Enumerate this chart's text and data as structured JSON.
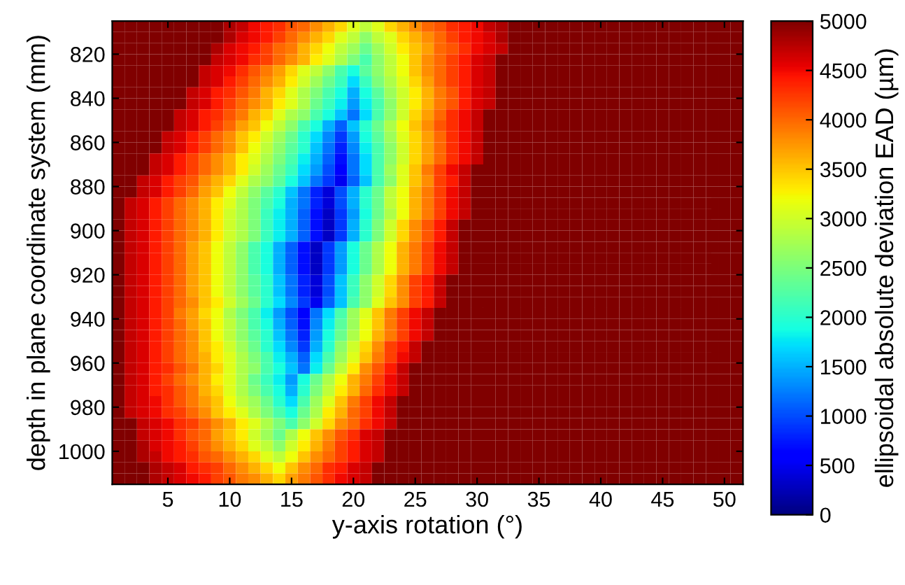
{
  "chart_data": {
    "type": "heatmap",
    "xlabel": "y-axis rotation (°)",
    "ylabel": "depth in plane coordinate system (mm)",
    "clabel": "ellipsoidal absolute deviation EAD (µm)",
    "x": [
      1,
      2,
      3,
      4,
      5,
      6,
      7,
      8,
      9,
      10,
      11,
      12,
      13,
      14,
      15,
      16,
      17,
      18,
      19,
      20,
      21,
      22,
      23,
      24,
      25,
      26,
      27,
      28,
      29,
      30,
      31,
      32,
      33,
      34,
      35,
      36,
      37,
      38,
      39,
      40,
      41,
      42,
      43,
      44,
      45,
      46,
      47,
      48,
      49,
      50,
      51
    ],
    "y": [
      807.5,
      812.5,
      817.5,
      822.5,
      827.5,
      832.5,
      837.5,
      842.5,
      847.5,
      852.5,
      857.5,
      862.5,
      867.5,
      872.5,
      877.5,
      882.5,
      887.5,
      892.5,
      897.5,
      902.5,
      907.5,
      912.5,
      917.5,
      922.5,
      927.5,
      932.5,
      937.5,
      942.5,
      947.5,
      952.5,
      957.5,
      962.5,
      967.5,
      972.5,
      977.5,
      982.5,
      987.5,
      992.5,
      997.5,
      1002.5,
      1007.5,
      1012.5
    ],
    "xlim": [
      0.5,
      51.5
    ],
    "ylim": [
      1015,
      805
    ],
    "xticks": [
      5,
      10,
      15,
      20,
      25,
      30,
      35,
      40,
      45,
      50
    ],
    "yticks": [
      820,
      840,
      860,
      880,
      900,
      920,
      940,
      960,
      980,
      1000
    ],
    "clim": [
      0,
      5000
    ],
    "cticks": [
      0,
      500,
      1000,
      1500,
      2000,
      2500,
      3000,
      3500,
      4000,
      4500,
      5000
    ],
    "cells": [
      [
        5000,
        5000,
        5000,
        5000,
        5000,
        5000,
        5000,
        5000,
        5000,
        4800,
        4700,
        4500,
        4400,
        4300,
        4100,
        4000,
        3800,
        3600,
        3400,
        3100,
        2900,
        3100,
        3400,
        3600,
        3800,
        4000,
        4100,
        4300,
        4400,
        4500,
        4700,
        4800,
        5000,
        5000,
        5000,
        5000,
        5000,
        5000,
        5000,
        5000,
        5000,
        5000,
        5000,
        5000,
        5000,
        5000,
        5000,
        5000,
        5000,
        5000,
        5000
      ],
      [
        5000,
        5000,
        5000,
        5000,
        5000,
        5000,
        5000,
        5000,
        5000,
        4800,
        4600,
        4500,
        4400,
        4200,
        4000,
        3800,
        3600,
        3400,
        3100,
        2900,
        2600,
        2900,
        3100,
        3400,
        3600,
        3800,
        4000,
        4200,
        4400,
        4500,
        4600,
        4800,
        5000,
        5000,
        5000,
        5000,
        5000,
        5000,
        5000,
        5000,
        5000,
        5000,
        5000,
        5000,
        5000,
        5000,
        5000,
        5000,
        5000,
        5000,
        5000
      ],
      [
        5000,
        5000,
        5000,
        5000,
        5000,
        5000,
        5000,
        5000,
        4800,
        4600,
        4500,
        4400,
        4200,
        4000,
        3900,
        3600,
        3400,
        3200,
        2900,
        2700,
        2400,
        2700,
        3000,
        3300,
        3500,
        3700,
        4000,
        4100,
        4300,
        4500,
        4600,
        4700,
        5000,
        5000,
        5000,
        5000,
        5000,
        5000,
        5000,
        5000,
        5000,
        5000,
        5000,
        5000,
        5000,
        5000,
        5000,
        5000,
        5000,
        5000,
        5000
      ],
      [
        5000,
        5000,
        5000,
        5000,
        5000,
        5000,
        5000,
        5000,
        4700,
        4600,
        4500,
        4300,
        4200,
        4000,
        3800,
        3600,
        3300,
        3100,
        2800,
        2500,
        2200,
        2600,
        2900,
        3200,
        3500,
        3800,
        4000,
        4200,
        4400,
        4600,
        4700,
        5000,
        5000,
        5000,
        5000,
        5000,
        5000,
        5000,
        5000,
        5000,
        5000,
        5000,
        5000,
        5000,
        5000,
        5000,
        5000,
        5000,
        5000,
        5000,
        5000
      ],
      [
        5000,
        5000,
        5000,
        5000,
        5000,
        5000,
        5000,
        4700,
        4600,
        4500,
        4300,
        4100,
        3900,
        3700,
        3400,
        3100,
        2900,
        2600,
        2200,
        1900,
        2300,
        2600,
        2900,
        3200,
        3500,
        3800,
        4000,
        4200,
        4400,
        4600,
        4700,
        5000,
        5000,
        5000,
        5000,
        5000,
        5000,
        5000,
        5000,
        5000,
        5000,
        5000,
        5000,
        5000,
        5000,
        5000,
        5000,
        5000,
        5000,
        5000,
        5000
      ],
      [
        5000,
        5000,
        5000,
        5000,
        5000,
        5000,
        5000,
        4700,
        4600,
        4400,
        4200,
        4000,
        3800,
        3600,
        3300,
        3000,
        2700,
        2400,
        2100,
        1700,
        2100,
        2500,
        2800,
        3100,
        3400,
        3700,
        4000,
        4200,
        4400,
        4600,
        4700,
        5000,
        5000,
        5000,
        5000,
        5000,
        5000,
        5000,
        5000,
        5000,
        5000,
        5000,
        5000,
        5000,
        5000,
        5000,
        5000,
        5000,
        5000,
        5000,
        5000
      ],
      [
        5000,
        5000,
        5000,
        5000,
        5000,
        5000,
        4700,
        4600,
        4400,
        4300,
        4100,
        3900,
        3600,
        3400,
        3100,
        2800,
        2500,
        2200,
        1900,
        1500,
        1900,
        2300,
        2700,
        3000,
        3300,
        3600,
        3900,
        4100,
        4400,
        4600,
        4700,
        5000,
        5000,
        5000,
        5000,
        5000,
        5000,
        5000,
        5000,
        5000,
        5000,
        5000,
        5000,
        5000,
        5000,
        5000,
        5000,
        5000,
        5000,
        5000,
        5000
      ],
      [
        5000,
        5000,
        5000,
        5000,
        5000,
        5000,
        4700,
        4600,
        4400,
        4200,
        4000,
        3800,
        3600,
        3300,
        3100,
        2800,
        2400,
        2100,
        1800,
        1400,
        1800,
        2200,
        2600,
        3000,
        3300,
        3600,
        3900,
        4100,
        4400,
        4600,
        4700,
        5000,
        5000,
        5000,
        5000,
        5000,
        5000,
        5000,
        5000,
        5000,
        5000,
        5000,
        5000,
        5000,
        5000,
        5000,
        5000,
        5000,
        5000,
        5000,
        5000
      ],
      [
        5000,
        5000,
        5000,
        5000,
        5000,
        4700,
        4600,
        4400,
        4300,
        4100,
        3900,
        3600,
        3400,
        3100,
        2800,
        2600,
        2200,
        1900,
        1600,
        1200,
        1700,
        2200,
        2600,
        3000,
        3400,
        3700,
        4000,
        4300,
        4500,
        4700,
        5000,
        5000,
        5000,
        5000,
        5000,
        5000,
        5000,
        5000,
        5000,
        5000,
        5000,
        5000,
        5000,
        5000,
        5000,
        5000,
        5000,
        5000,
        5000,
        5000,
        5000
      ],
      [
        5000,
        5000,
        5000,
        5000,
        5000,
        4700,
        4600,
        4400,
        4200,
        4000,
        3700,
        3500,
        3200,
        2900,
        2600,
        2200,
        1900,
        1500,
        1100,
        1600,
        2000,
        2400,
        2800,
        3200,
        3500,
        3800,
        4100,
        4300,
        4500,
        4700,
        5000,
        5000,
        5000,
        5000,
        5000,
        5000,
        5000,
        5000,
        5000,
        5000,
        5000,
        5000,
        5000,
        5000,
        5000,
        5000,
        5000,
        5000,
        5000,
        5000,
        5000
      ],
      [
        5000,
        5000,
        5000,
        5000,
        4700,
        4600,
        4400,
        4200,
        4000,
        3800,
        3500,
        3300,
        3000,
        2700,
        2400,
        2000,
        1700,
        1300,
        900,
        1400,
        1900,
        2300,
        2700,
        3100,
        3400,
        3700,
        4000,
        4300,
        4500,
        4700,
        5000,
        5000,
        5000,
        5000,
        5000,
        5000,
        5000,
        5000,
        5000,
        5000,
        5000,
        5000,
        5000,
        5000,
        5000,
        5000,
        5000,
        5000,
        5000,
        5000,
        5000
      ],
      [
        5000,
        5000,
        5000,
        5000,
        4700,
        4600,
        4400,
        4200,
        4000,
        3800,
        3500,
        3200,
        2900,
        2600,
        2300,
        2000,
        1600,
        1200,
        800,
        1300,
        1800,
        2200,
        2600,
        3000,
        3400,
        3700,
        4000,
        4300,
        4500,
        4700,
        5000,
        5000,
        5000,
        5000,
        5000,
        5000,
        5000,
        5000,
        5000,
        5000,
        5000,
        5000,
        5000,
        5000,
        5000,
        5000,
        5000,
        5000,
        5000,
        5000,
        5000
      ],
      [
        5000,
        5000,
        5000,
        4700,
        4600,
        4400,
        4200,
        4000,
        3800,
        3600,
        3300,
        3100,
        2800,
        2500,
        2200,
        1800,
        1500,
        1100,
        700,
        1200,
        1700,
        2200,
        2600,
        3000,
        3400,
        3700,
        4000,
        4300,
        4500,
        4700,
        5000,
        5000,
        5000,
        5000,
        5000,
        5000,
        5000,
        5000,
        5000,
        5000,
        5000,
        5000,
        5000,
        5000,
        5000,
        5000,
        5000,
        5000,
        5000,
        5000,
        5000
      ],
      [
        5000,
        5000,
        5000,
        4700,
        4600,
        4400,
        4200,
        4000,
        3800,
        3600,
        3300,
        3000,
        2700,
        2400,
        2100,
        1700,
        1400,
        1000,
        600,
        1200,
        1700,
        2200,
        2700,
        3100,
        3500,
        3900,
        4200,
        4500,
        4700,
        5000,
        5000,
        5000,
        5000,
        5000,
        5000,
        5000,
        5000,
        5000,
        5000,
        5000,
        5000,
        5000,
        5000,
        5000,
        5000,
        5000,
        5000,
        5000,
        5000,
        5000,
        5000
      ],
      [
        5000,
        5000,
        4700,
        4600,
        4400,
        4200,
        4100,
        3800,
        3600,
        3400,
        3100,
        2800,
        2600,
        2300,
        1900,
        1600,
        1200,
        900,
        500,
        1100,
        1600,
        2200,
        2600,
        3100,
        3500,
        3800,
        4200,
        4400,
        4700,
        5000,
        5000,
        5000,
        5000,
        5000,
        5000,
        5000,
        5000,
        5000,
        5000,
        5000,
        5000,
        5000,
        5000,
        5000,
        5000,
        5000,
        5000,
        5000,
        5000,
        5000,
        5000
      ],
      [
        5000,
        5000,
        4700,
        4600,
        4400,
        4200,
        4000,
        3700,
        3500,
        3200,
        2900,
        2600,
        2300,
        2000,
        1600,
        1200,
        800,
        400,
        1000,
        1500,
        2000,
        2400,
        2900,
        3200,
        3600,
        3900,
        4200,
        4500,
        4700,
        5000,
        5000,
        5000,
        5000,
        5000,
        5000,
        5000,
        5000,
        5000,
        5000,
        5000,
        5000,
        5000,
        5000,
        5000,
        5000,
        5000,
        5000,
        5000,
        5000,
        5000,
        5000
      ],
      [
        5000,
        4700,
        4600,
        4400,
        4200,
        4000,
        3800,
        3600,
        3300,
        3100,
        2800,
        2500,
        2200,
        1900,
        1500,
        1200,
        800,
        400,
        1000,
        1500,
        2000,
        2400,
        2900,
        3200,
        3600,
        3900,
        4200,
        4500,
        4700,
        5000,
        5000,
        5000,
        5000,
        5000,
        5000,
        5000,
        5000,
        5000,
        5000,
        5000,
        5000,
        5000,
        5000,
        5000,
        5000,
        5000,
        5000,
        5000,
        5000,
        5000,
        5000
      ],
      [
        5000,
        4700,
        4600,
        4400,
        4200,
        4000,
        3800,
        3600,
        3300,
        3000,
        2800,
        2500,
        2100,
        1800,
        1500,
        1100,
        700,
        300,
        900,
        1400,
        1900,
        2400,
        2800,
        3200,
        3600,
        3900,
        4200,
        4500,
        4700,
        5000,
        5000,
        5000,
        5000,
        5000,
        5000,
        5000,
        5000,
        5000,
        5000,
        5000,
        5000,
        5000,
        5000,
        5000,
        5000,
        5000,
        5000,
        5000,
        5000,
        5000,
        5000
      ],
      [
        5000,
        4700,
        4600,
        4400,
        4200,
        4000,
        3800,
        3600,
        3300,
        3000,
        2800,
        2500,
        2100,
        1800,
        1500,
        1100,
        700,
        300,
        900,
        1500,
        2000,
        2500,
        3000,
        3400,
        3800,
        4100,
        4400,
        4700,
        5000,
        5000,
        5000,
        5000,
        5000,
        5000,
        5000,
        5000,
        5000,
        5000,
        5000,
        5000,
        5000,
        5000,
        5000,
        5000,
        5000,
        5000,
        5000,
        5000,
        5000,
        5000,
        5000
      ],
      [
        5000,
        4700,
        4600,
        4400,
        4200,
        4000,
        3800,
        3600,
        3300,
        3000,
        2800,
        2500,
        2100,
        1800,
        1500,
        1100,
        700,
        300,
        900,
        1500,
        2000,
        2500,
        3000,
        3400,
        3800,
        4100,
        4400,
        4700,
        5000,
        5000,
        5000,
        5000,
        5000,
        5000,
        5000,
        5000,
        5000,
        5000,
        5000,
        5000,
        5000,
        5000,
        5000,
        5000,
        5000,
        5000,
        5000,
        5000,
        5000,
        5000,
        5000
      ],
      [
        5000,
        4700,
        4600,
        4400,
        4200,
        4000,
        3700,
        3500,
        3200,
        2900,
        2600,
        2200,
        1900,
        1500,
        1100,
        700,
        300,
        900,
        1400,
        1900,
        2400,
        2800,
        3200,
        3600,
        3900,
        4200,
        4500,
        4700,
        5000,
        5000,
        5000,
        5000,
        5000,
        5000,
        5000,
        5000,
        5000,
        5000,
        5000,
        5000,
        5000,
        5000,
        5000,
        5000,
        5000,
        5000,
        5000,
        5000,
        5000,
        5000,
        5000
      ],
      [
        5000,
        4700,
        4600,
        4400,
        4200,
        4000,
        3700,
        3500,
        3200,
        2900,
        2600,
        2200,
        1900,
        1500,
        1100,
        700,
        300,
        900,
        1400,
        1900,
        2400,
        2800,
        3200,
        3600,
        3900,
        4200,
        4500,
        4700,
        5000,
        5000,
        5000,
        5000,
        5000,
        5000,
        5000,
        5000,
        5000,
        5000,
        5000,
        5000,
        5000,
        5000,
        5000,
        5000,
        5000,
        5000,
        5000,
        5000,
        5000,
        5000,
        5000
      ],
      [
        5000,
        4700,
        4600,
        4400,
        4200,
        4000,
        3700,
        3500,
        3200,
        2900,
        2600,
        2200,
        1900,
        1500,
        1100,
        700,
        300,
        900,
        1400,
        1900,
        2400,
        2800,
        3200,
        3600,
        3900,
        4200,
        4500,
        4700,
        5000,
        5000,
        5000,
        5000,
        5000,
        5000,
        5000,
        5000,
        5000,
        5000,
        5000,
        5000,
        5000,
        5000,
        5000,
        5000,
        5000,
        5000,
        5000,
        5000,
        5000,
        5000,
        5000
      ],
      [
        5000,
        4700,
        4600,
        4400,
        4200,
        4000,
        3700,
        3500,
        3200,
        2900,
        2600,
        2300,
        2000,
        1600,
        1200,
        800,
        400,
        1000,
        1600,
        2100,
        2600,
        3000,
        3400,
        3800,
        4200,
        4400,
        4700,
        5000,
        5000,
        5000,
        5000,
        5000,
        5000,
        5000,
        5000,
        5000,
        5000,
        5000,
        5000,
        5000,
        5000,
        5000,
        5000,
        5000,
        5000,
        5000,
        5000,
        5000,
        5000,
        5000,
        5000
      ],
      [
        5000,
        4700,
        4600,
        4400,
        4200,
        4000,
        3700,
        3500,
        3200,
        2900,
        2600,
        2300,
        2000,
        1600,
        1200,
        800,
        400,
        1000,
        1600,
        2100,
        2600,
        3000,
        3400,
        3800,
        4200,
        4400,
        4700,
        5000,
        5000,
        5000,
        5000,
        5000,
        5000,
        5000,
        5000,
        5000,
        5000,
        5000,
        5000,
        5000,
        5000,
        5000,
        5000,
        5000,
        5000,
        5000,
        5000,
        5000,
        5000,
        5000,
        5000
      ],
      [
        5000,
        4700,
        4600,
        4400,
        4200,
        4000,
        3800,
        3500,
        3300,
        3000,
        2700,
        2400,
        2000,
        1700,
        1300,
        900,
        500,
        1100,
        1600,
        2200,
        2600,
        3100,
        3500,
        3800,
        4200,
        4400,
        4700,
        5000,
        5000,
        5000,
        5000,
        5000,
        5000,
        5000,
        5000,
        5000,
        5000,
        5000,
        5000,
        5000,
        5000,
        5000,
        5000,
        5000,
        5000,
        5000,
        5000,
        5000,
        5000,
        5000,
        5000
      ],
      [
        5000,
        4700,
        4600,
        4400,
        4200,
        3900,
        3700,
        3400,
        3200,
        2800,
        2500,
        2200,
        1800,
        1400,
        1000,
        600,
        1200,
        1700,
        2200,
        2700,
        3100,
        3500,
        3900,
        4200,
        4500,
        4700,
        5000,
        5000,
        5000,
        5000,
        5000,
        5000,
        5000,
        5000,
        5000,
        5000,
        5000,
        5000,
        5000,
        5000,
        5000,
        5000,
        5000,
        5000,
        5000,
        5000,
        5000,
        5000,
        5000,
        5000,
        5000
      ],
      [
        5000,
        4700,
        4600,
        4400,
        4200,
        4000,
        3700,
        3500,
        3200,
        2900,
        2600,
        2200,
        1900,
        1500,
        1100,
        700,
        1300,
        1800,
        2300,
        2700,
        3200,
        3500,
        3900,
        4200,
        4500,
        4700,
        5000,
        5000,
        5000,
        5000,
        5000,
        5000,
        5000,
        5000,
        5000,
        5000,
        5000,
        5000,
        5000,
        5000,
        5000,
        5000,
        5000,
        5000,
        5000,
        5000,
        5000,
        5000,
        5000,
        5000,
        5000
      ],
      [
        5000,
        4700,
        4600,
        4400,
        4200,
        4000,
        3800,
        3500,
        3200,
        2900,
        2600,
        2300,
        2000,
        1600,
        1200,
        800,
        1400,
        1900,
        2400,
        2800,
        3200,
        3600,
        3900,
        4200,
        4500,
        4700,
        5000,
        5000,
        5000,
        5000,
        5000,
        5000,
        5000,
        5000,
        5000,
        5000,
        5000,
        5000,
        5000,
        5000,
        5000,
        5000,
        5000,
        5000,
        5000,
        5000,
        5000,
        5000,
        5000,
        5000,
        5000
      ],
      [
        5000,
        4700,
        4600,
        4400,
        4200,
        4000,
        3800,
        3500,
        3300,
        3000,
        2700,
        2400,
        2000,
        1700,
        1300,
        900,
        1500,
        2000,
        2600,
        3000,
        3400,
        3800,
        4200,
        4400,
        4700,
        5000,
        5000,
        5000,
        5000,
        5000,
        5000,
        5000,
        5000,
        5000,
        5000,
        5000,
        5000,
        5000,
        5000,
        5000,
        5000,
        5000,
        5000,
        5000,
        5000,
        5000,
        5000,
        5000,
        5000,
        5000,
        5000
      ],
      [
        5000,
        4700,
        4600,
        4400,
        4200,
        4000,
        3800,
        3600,
        3300,
        3100,
        2800,
        2500,
        2200,
        1800,
        1500,
        1100,
        1700,
        2200,
        2700,
        3100,
        3500,
        3900,
        4200,
        4500,
        4700,
        5000,
        5000,
        5000,
        5000,
        5000,
        5000,
        5000,
        5000,
        5000,
        5000,
        5000,
        5000,
        5000,
        5000,
        5000,
        5000,
        5000,
        5000,
        5000,
        5000,
        5000,
        5000,
        5000,
        5000,
        5000,
        5000
      ],
      [
        5000,
        4700,
        4600,
        4400,
        4300,
        4100,
        3900,
        3600,
        3400,
        3100,
        2800,
        2600,
        2200,
        1900,
        1600,
        1200,
        1800,
        2400,
        2900,
        3300,
        3800,
        4100,
        4400,
        4700,
        5000,
        5000,
        5000,
        5000,
        5000,
        5000,
        5000,
        5000,
        5000,
        5000,
        5000,
        5000,
        5000,
        5000,
        5000,
        5000,
        5000,
        5000,
        5000,
        5000,
        5000,
        5000,
        5000,
        5000,
        5000,
        5000,
        5000
      ],
      [
        5000,
        4700,
        4600,
        4400,
        4200,
        4000,
        3800,
        3600,
        3300,
        3100,
        2800,
        2400,
        2100,
        1800,
        1400,
        1900,
        2400,
        2800,
        3200,
        3600,
        3900,
        4200,
        4500,
        4700,
        5000,
        5000,
        5000,
        5000,
        5000,
        5000,
        5000,
        5000,
        5000,
        5000,
        5000,
        5000,
        5000,
        5000,
        5000,
        5000,
        5000,
        5000,
        5000,
        5000,
        5000,
        5000,
        5000,
        5000,
        5000,
        5000,
        5000
      ],
      [
        5000,
        4700,
        4600,
        4400,
        4300,
        4100,
        3900,
        3600,
        3400,
        3100,
        2800,
        2500,
        2200,
        1900,
        1500,
        2000,
        2500,
        2900,
        3300,
        3600,
        4000,
        4300,
        4500,
        4700,
        5000,
        5000,
        5000,
        5000,
        5000,
        5000,
        5000,
        5000,
        5000,
        5000,
        5000,
        5000,
        5000,
        5000,
        5000,
        5000,
        5000,
        5000,
        5000,
        5000,
        5000,
        5000,
        5000,
        5000,
        5000,
        5000,
        5000
      ],
      [
        5000,
        4700,
        4600,
        4500,
        4300,
        4100,
        3900,
        3700,
        3500,
        3200,
        2900,
        2700,
        2400,
        2000,
        1700,
        2200,
        2700,
        3100,
        3500,
        3900,
        4200,
        4500,
        4700,
        5000,
        5000,
        5000,
        5000,
        5000,
        5000,
        5000,
        5000,
        5000,
        5000,
        5000,
        5000,
        5000,
        5000,
        5000,
        5000,
        5000,
        5000,
        5000,
        5000,
        5000,
        5000,
        5000,
        5000,
        5000,
        5000,
        5000,
        5000
      ],
      [
        5000,
        4700,
        4600,
        4500,
        4300,
        4200,
        4000,
        3800,
        3500,
        3300,
        3100,
        2800,
        2500,
        2200,
        1900,
        2400,
        2800,
        3300,
        3600,
        4000,
        4200,
        4500,
        4700,
        5000,
        5000,
        5000,
        5000,
        5000,
        5000,
        5000,
        5000,
        5000,
        5000,
        5000,
        5000,
        5000,
        5000,
        5000,
        5000,
        5000,
        5000,
        5000,
        5000,
        5000,
        5000,
        5000,
        5000,
        5000,
        5000,
        5000,
        5000
      ],
      [
        5000,
        5000,
        4700,
        4600,
        4500,
        4300,
        4200,
        4000,
        3800,
        3600,
        3300,
        3100,
        2800,
        2500,
        2200,
        2600,
        3000,
        3400,
        3800,
        4000,
        4300,
        4500,
        4700,
        5000,
        5000,
        5000,
        5000,
        5000,
        5000,
        5000,
        5000,
        5000,
        5000,
        5000,
        5000,
        5000,
        5000,
        5000,
        5000,
        5000,
        5000,
        5000,
        5000,
        5000,
        5000,
        5000,
        5000,
        5000,
        5000,
        5000,
        5000
      ],
      [
        5000,
        5000,
        4700,
        4600,
        4500,
        4300,
        4100,
        4000,
        3700,
        3500,
        3300,
        3000,
        2700,
        2400,
        2800,
        3200,
        3500,
        3800,
        4100,
        4300,
        4600,
        4700,
        5000,
        5000,
        5000,
        5000,
        5000,
        5000,
        5000,
        5000,
        5000,
        5000,
        5000,
        5000,
        5000,
        5000,
        5000,
        5000,
        5000,
        5000,
        5000,
        5000,
        5000,
        5000,
        5000,
        5000,
        5000,
        5000,
        5000,
        5000,
        5000
      ],
      [
        5000,
        5000,
        4800,
        4600,
        4500,
        4400,
        4200,
        4000,
        3800,
        3600,
        3400,
        3100,
        2900,
        2600,
        3000,
        3300,
        3600,
        3900,
        4200,
        4400,
        4600,
        4700,
        5000,
        5000,
        5000,
        5000,
        5000,
        5000,
        5000,
        5000,
        5000,
        5000,
        5000,
        5000,
        5000,
        5000,
        5000,
        5000,
        5000,
        5000,
        5000,
        5000,
        5000,
        5000,
        5000,
        5000,
        5000,
        5000,
        5000,
        5000,
        5000
      ],
      [
        5000,
        5000,
        4800,
        4700,
        4500,
        4400,
        4300,
        4100,
        4000,
        3800,
        3600,
        3400,
        3100,
        2900,
        3200,
        3500,
        3800,
        4000,
        4200,
        4400,
        4600,
        4700,
        5000,
        5000,
        5000,
        5000,
        5000,
        5000,
        5000,
        5000,
        5000,
        5000,
        5000,
        5000,
        5000,
        5000,
        5000,
        5000,
        5000,
        5000,
        5000,
        5000,
        5000,
        5000,
        5000,
        5000,
        5000,
        5000,
        5000,
        5000,
        5000
      ],
      [
        5000,
        5000,
        5000,
        4800,
        4700,
        4600,
        4400,
        4300,
        4200,
        4000,
        3800,
        3600,
        3400,
        3200,
        3500,
        3800,
        4000,
        4300,
        4400,
        4600,
        4700,
        5000,
        5000,
        5000,
        5000,
        5000,
        5000,
        5000,
        5000,
        5000,
        5000,
        5000,
        5000,
        5000,
        5000,
        5000,
        5000,
        5000,
        5000,
        5000,
        5000,
        5000,
        5000,
        5000,
        5000,
        5000,
        5000,
        5000,
        5000,
        5000,
        5000
      ],
      [
        5000,
        5000,
        5000,
        4800,
        4700,
        4600,
        4500,
        4400,
        4200,
        4100,
        3900,
        3800,
        3600,
        3400,
        3700,
        3900,
        4100,
        4300,
        4500,
        4600,
        4700,
        5000,
        5000,
        5000,
        5000,
        5000,
        5000,
        5000,
        5000,
        5000,
        5000,
        5000,
        5000,
        5000,
        5000,
        5000,
        5000,
        5000,
        5000,
        5000,
        5000,
        5000,
        5000,
        5000,
        5000,
        5000,
        5000,
        5000,
        5000,
        5000,
        5000
      ]
    ]
  }
}
